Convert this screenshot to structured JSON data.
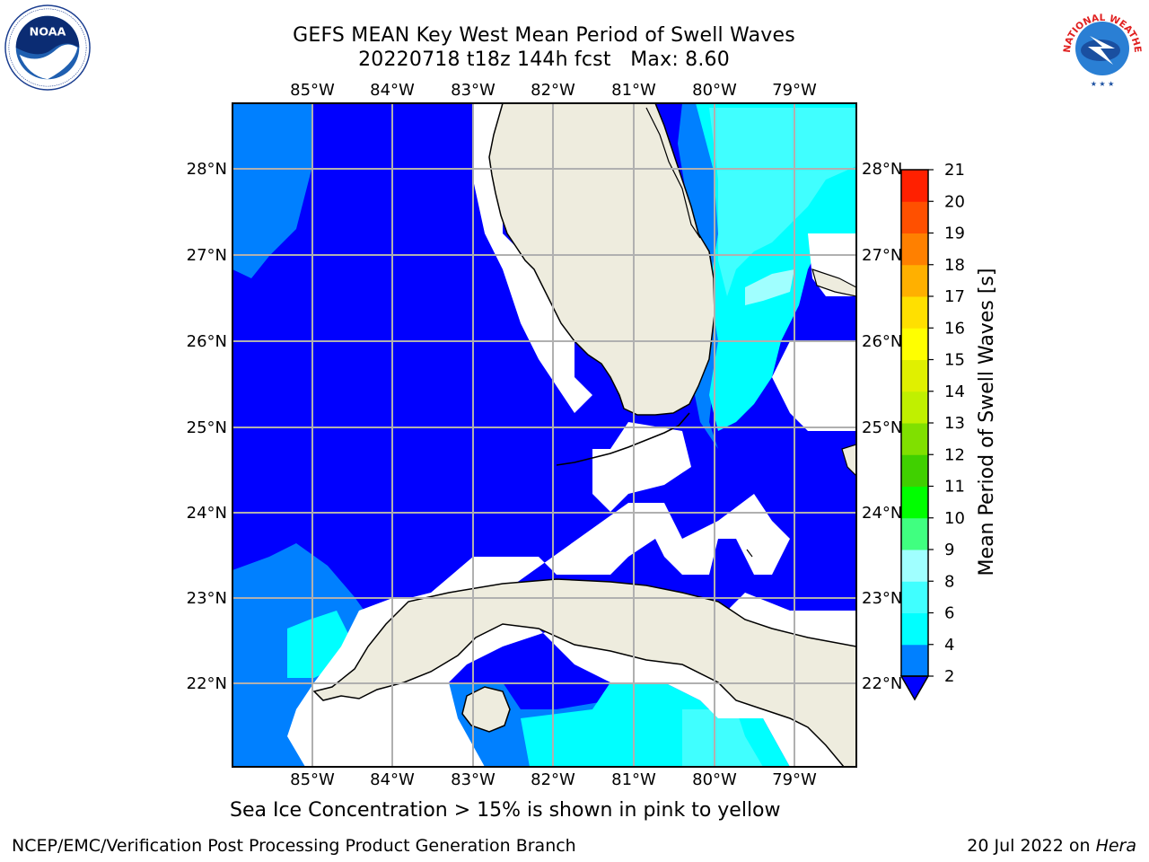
{
  "title": {
    "line1": "GEFS MEAN Key West Mean Period of Swell Waves",
    "line2": "20220718 t18z 144h fcst   Max: 8.60"
  },
  "map": {
    "lon_labels": [
      "85°W",
      "84°W",
      "83°W",
      "82°W",
      "81°W",
      "80°W",
      "79°W"
    ],
    "lat_labels_left": [
      "28°N",
      "27°N",
      "26°N",
      "25°N",
      "24°N",
      "23°N",
      "22°N"
    ],
    "lat_labels_right": [
      "28°N",
      "27°N",
      "26°N",
      "25°N",
      "24°N",
      "23°N",
      "22°N"
    ],
    "land_color": "#eeecde",
    "ocean_base_color": "#0000ff",
    "grid": true
  },
  "colorbar": {
    "title": "Mean Period of Swell Waves [s]",
    "ticks": [
      "2",
      "4",
      "6",
      "8",
      "9",
      "10",
      "11",
      "12",
      "13",
      "14",
      "15",
      "16",
      "17",
      "18",
      "19",
      "20",
      "21"
    ],
    "colors": [
      "#0000ff",
      "#0080ff",
      "#00ffff",
      "#40ffff",
      "#a0ffff",
      "#40ff80",
      "#00ff00",
      "#40d000",
      "#80e000",
      "#c0f000",
      "#e0f000",
      "#ffff00",
      "#ffe000",
      "#ffb000",
      "#ff8000",
      "#ff5000",
      "#ff2000",
      "#ff0000"
    ],
    "extend_min": true
  },
  "note": "Sea Ice Concentration > 15% is shown in pink to yellow",
  "footer": {
    "left": "NCEP/EMC/Verification Post Processing Product Generation Branch",
    "right_prefix": "20 Jul 2022 on ",
    "right_host": "Hera"
  },
  "logos": {
    "noaa": "NOAA",
    "nws": "NATIONAL WEATHER SERVICE"
  }
}
